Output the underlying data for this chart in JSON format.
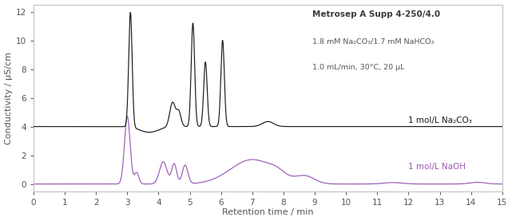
{
  "title": "Metrosep A Supp 4-250/4.0",
  "subtitle_line1": "1.8 mM Na₂CO₃/1.7 mM NaHCO₃",
  "subtitle_line2": "1.0 mL/min, 30°C, 20 μL",
  "xlabel": "Retention time / min",
  "ylabel": "Conductivity / μS/cm",
  "xlim": [
    0,
    15
  ],
  "ylim": [
    -0.5,
    12.5
  ],
  "yticks": [
    0,
    2,
    4,
    6,
    8,
    10,
    12
  ],
  "xticks": [
    0,
    1,
    2,
    3,
    4,
    5,
    6,
    7,
    8,
    9,
    10,
    11,
    12,
    13,
    14,
    15
  ],
  "black_color": "#1a1a1a",
  "purple_color": "#9b59b6",
  "label_black": "1 mol/L Na₂CO₃",
  "label_purple": "1 mol/L NaOH",
  "bg_color": "#ffffff",
  "title_color": "#3a3a3a",
  "subtitle_color": "#555555",
  "axis_color": "#555555",
  "tick_color": "#555555"
}
